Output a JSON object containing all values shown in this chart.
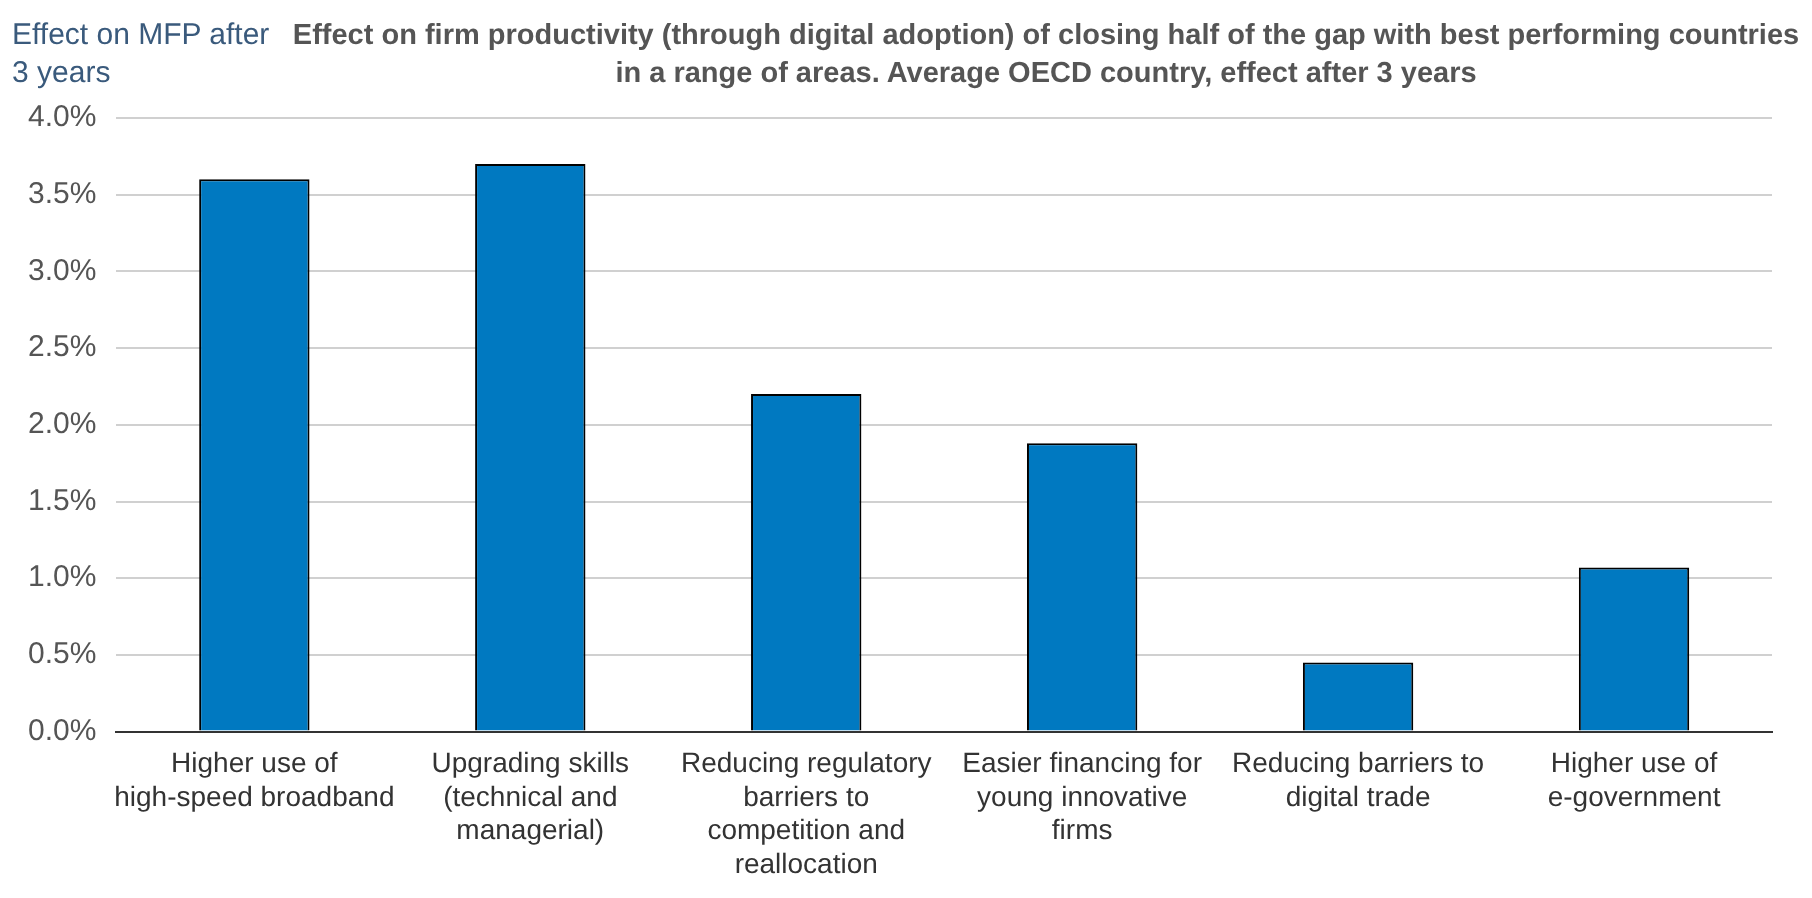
{
  "chart_data": {
    "type": "bar",
    "title": "Effect on firm productivity (through digital adoption) of closing half of the gap with best performing countries in a range of areas. Average OECD country, effect after 3 years",
    "ylabel": "Effect on MFP after 3 years",
    "categories": [
      "Higher use of high-speed broadband",
      "Upgrading skills (technical and managerial)",
      "Reducing regulatory barriers to competition and reallocation",
      "Easier financing for young innovative firms",
      "Reducing barriers to digital trade",
      "Higher use of e-government"
    ],
    "values": [
      3.6,
      3.7,
      2.2,
      1.88,
      0.45,
      1.07
    ],
    "color": "#0079c1",
    "ylim": [
      0,
      4
    ],
    "yticks": [
      {
        "value": 0,
        "label": "0.0%"
      },
      {
        "value": 0.5,
        "label": "0.5%"
      },
      {
        "value": 1,
        "label": "1.0%"
      },
      {
        "value": 1.5,
        "label": "1.5%"
      },
      {
        "value": 2,
        "label": "2.0%"
      },
      {
        "value": 2.5,
        "label": "2.5%"
      },
      {
        "value": 3,
        "label": "3.0%"
      },
      {
        "value": 3.5,
        "label": "3.5%"
      },
      {
        "value": 4,
        "label": "4.0%"
      }
    ],
    "grid": "y"
  }
}
